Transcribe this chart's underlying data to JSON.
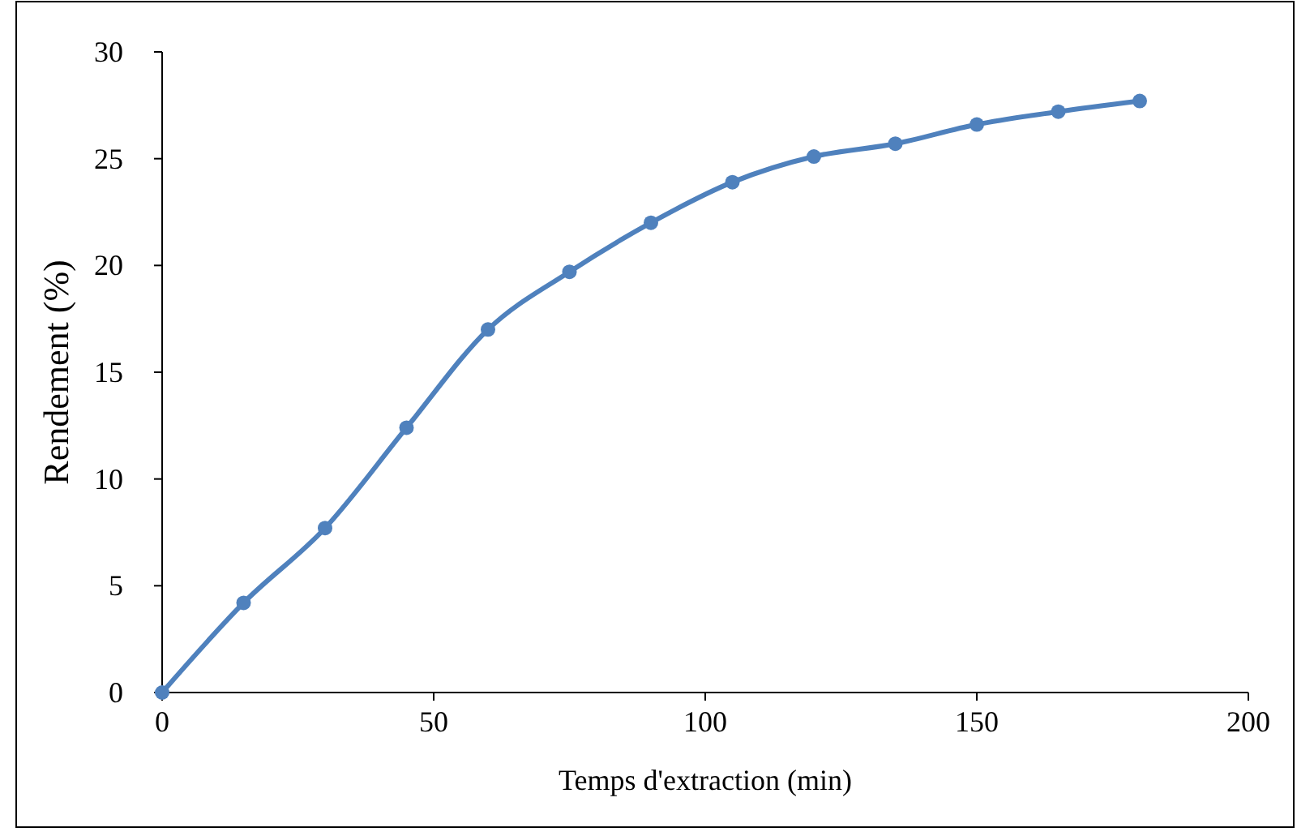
{
  "chart_data": {
    "type": "line",
    "xlabel": "Temps d'extraction (min)",
    "ylabel": "Rendement (%)",
    "x": [
      0,
      15,
      30,
      45,
      60,
      75,
      90,
      105,
      120,
      135,
      150,
      165,
      180
    ],
    "series": [
      {
        "color": "#4f81bd",
        "values": [
          0,
          4.2,
          7.7,
          12.4,
          17,
          19.7,
          22,
          23.9,
          25.1,
          25.7,
          26.6,
          27.2,
          27.7
        ]
      }
    ],
    "xlim": [
      0,
      200
    ],
    "xticks": [
      0,
      50,
      100,
      150,
      200
    ],
    "ylim": [
      0,
      30
    ],
    "yticks": [
      0,
      5,
      10,
      15,
      20,
      25,
      30
    ],
    "marker": "circle",
    "line_style": "solid"
  }
}
